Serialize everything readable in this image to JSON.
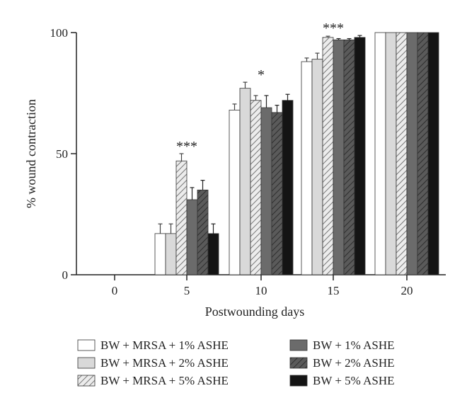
{
  "chart_data": {
    "type": "bar",
    "xlabel": "Postwounding days",
    "ylabel": "% wound contraction",
    "ylim": [
      0,
      100
    ],
    "yticks": [
      0,
      50,
      100
    ],
    "categories": [
      "0",
      "5",
      "10",
      "15",
      "20"
    ],
    "grid": false,
    "legend_position": "bottom",
    "series": [
      {
        "name": "BW + MRSA + 1% ASHE",
        "style": "white",
        "values": [
          0,
          17,
          68,
          88,
          100
        ],
        "errors": [
          0,
          4,
          2.5,
          1.5,
          0
        ]
      },
      {
        "name": "BW + MRSA + 2% ASHE",
        "style": "light-gray",
        "values": [
          0,
          17,
          77,
          89,
          100
        ],
        "errors": [
          0,
          4,
          2.5,
          2.5,
          0
        ]
      },
      {
        "name": "BW + MRSA + 5% ASHE",
        "style": "light-hatched",
        "values": [
          0,
          47,
          72,
          98,
          100
        ],
        "errors": [
          0,
          3,
          2,
          0.5,
          0
        ]
      },
      {
        "name": "BW + 1% ASHE",
        "style": "dark-gray",
        "values": [
          0,
          31,
          69,
          97,
          100
        ],
        "errors": [
          0,
          5,
          5,
          0.5,
          0
        ]
      },
      {
        "name": "BW + 2% ASHE",
        "style": "dark-hatched",
        "values": [
          0,
          35,
          67,
          97,
          100
        ],
        "errors": [
          0,
          4,
          3,
          0.5,
          0
        ]
      },
      {
        "name": "BW + 5% ASHE",
        "style": "black",
        "values": [
          0,
          17,
          72,
          98,
          100
        ],
        "errors": [
          0,
          4,
          2.5,
          0.8,
          0
        ]
      }
    ],
    "annotations": [
      {
        "category": "5",
        "text": "***"
      },
      {
        "category": "10",
        "text": "*"
      },
      {
        "category": "15",
        "text": "***"
      }
    ],
    "colors": {
      "white": "#ffffff",
      "light-gray": "#d9d9d9",
      "light-hatched": "#e6e6e6",
      "dark-gray": "#6b6b6b",
      "dark-hatched": "#5f5f5f",
      "black": "#141414",
      "outline": "#333333"
    }
  }
}
